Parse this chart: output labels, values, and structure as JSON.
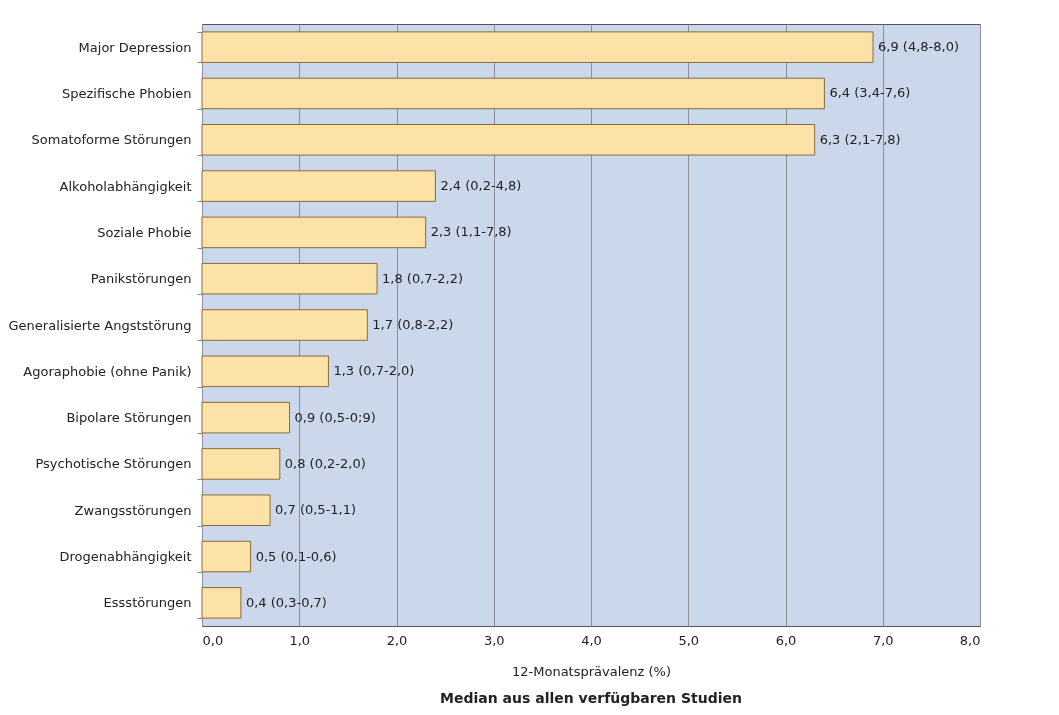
{
  "chart_data": {
    "type": "bar",
    "orientation": "horizontal",
    "title": "Median aus allen verfügbaren Studien",
    "xlabel": "12-Monatsprävalenz (%)",
    "categories": [
      "Major Depression",
      "Spezifische Phobien",
      "Somatoforme Störungen",
      "Alkoholabhängigkeit",
      "Soziale Phobie",
      "Panikstörungen",
      "Generalisierte Angststörung",
      "Agoraphobie (ohne Panik)",
      "Bipolare Störungen",
      "Psychotische Störungen",
      "Zwangsstörungen",
      "Drogenabhängigkeit",
      "Essstörungen"
    ],
    "values": [
      6.9,
      6.4,
      6.3,
      2.4,
      2.3,
      1.8,
      1.7,
      1.3,
      0.9,
      0.8,
      0.7,
      0.5,
      0.4
    ],
    "value_labels": [
      "6,9  (4,8-8,0)",
      "6,4  (3,4-7,6)",
      "6,3  (2,1-7,8)",
      "2,4  (0,2-4,8)",
      "2,3  (1,1-7,8)",
      "1,8  (0,7-2,2)",
      "1,7  (0,8-2,2)",
      "1,3  (0,7-2,0)",
      "0,9  (0,5-0;9)",
      "0,8  (0,2-2,0)",
      "0,7  (0,5-1,1)",
      "0,5  (0,1-0,6)",
      "0,4  (0,3-0,7)"
    ],
    "color": "#fde2a8",
    "xlim": [
      0,
      8
    ],
    "xticks": [
      {
        "value": 0,
        "label": "0,0"
      },
      {
        "value": 1,
        "label": "1,0"
      },
      {
        "value": 2,
        "label": "2,0"
      },
      {
        "value": 3,
        "label": "3,0"
      },
      {
        "value": 4,
        "label": "4,0"
      },
      {
        "value": 5,
        "label": "5,0"
      },
      {
        "value": 6,
        "label": "6,0"
      },
      {
        "value": 7,
        "label": "7,0"
      },
      {
        "value": 8,
        "label": "8,0"
      }
    ],
    "grid": "x"
  }
}
